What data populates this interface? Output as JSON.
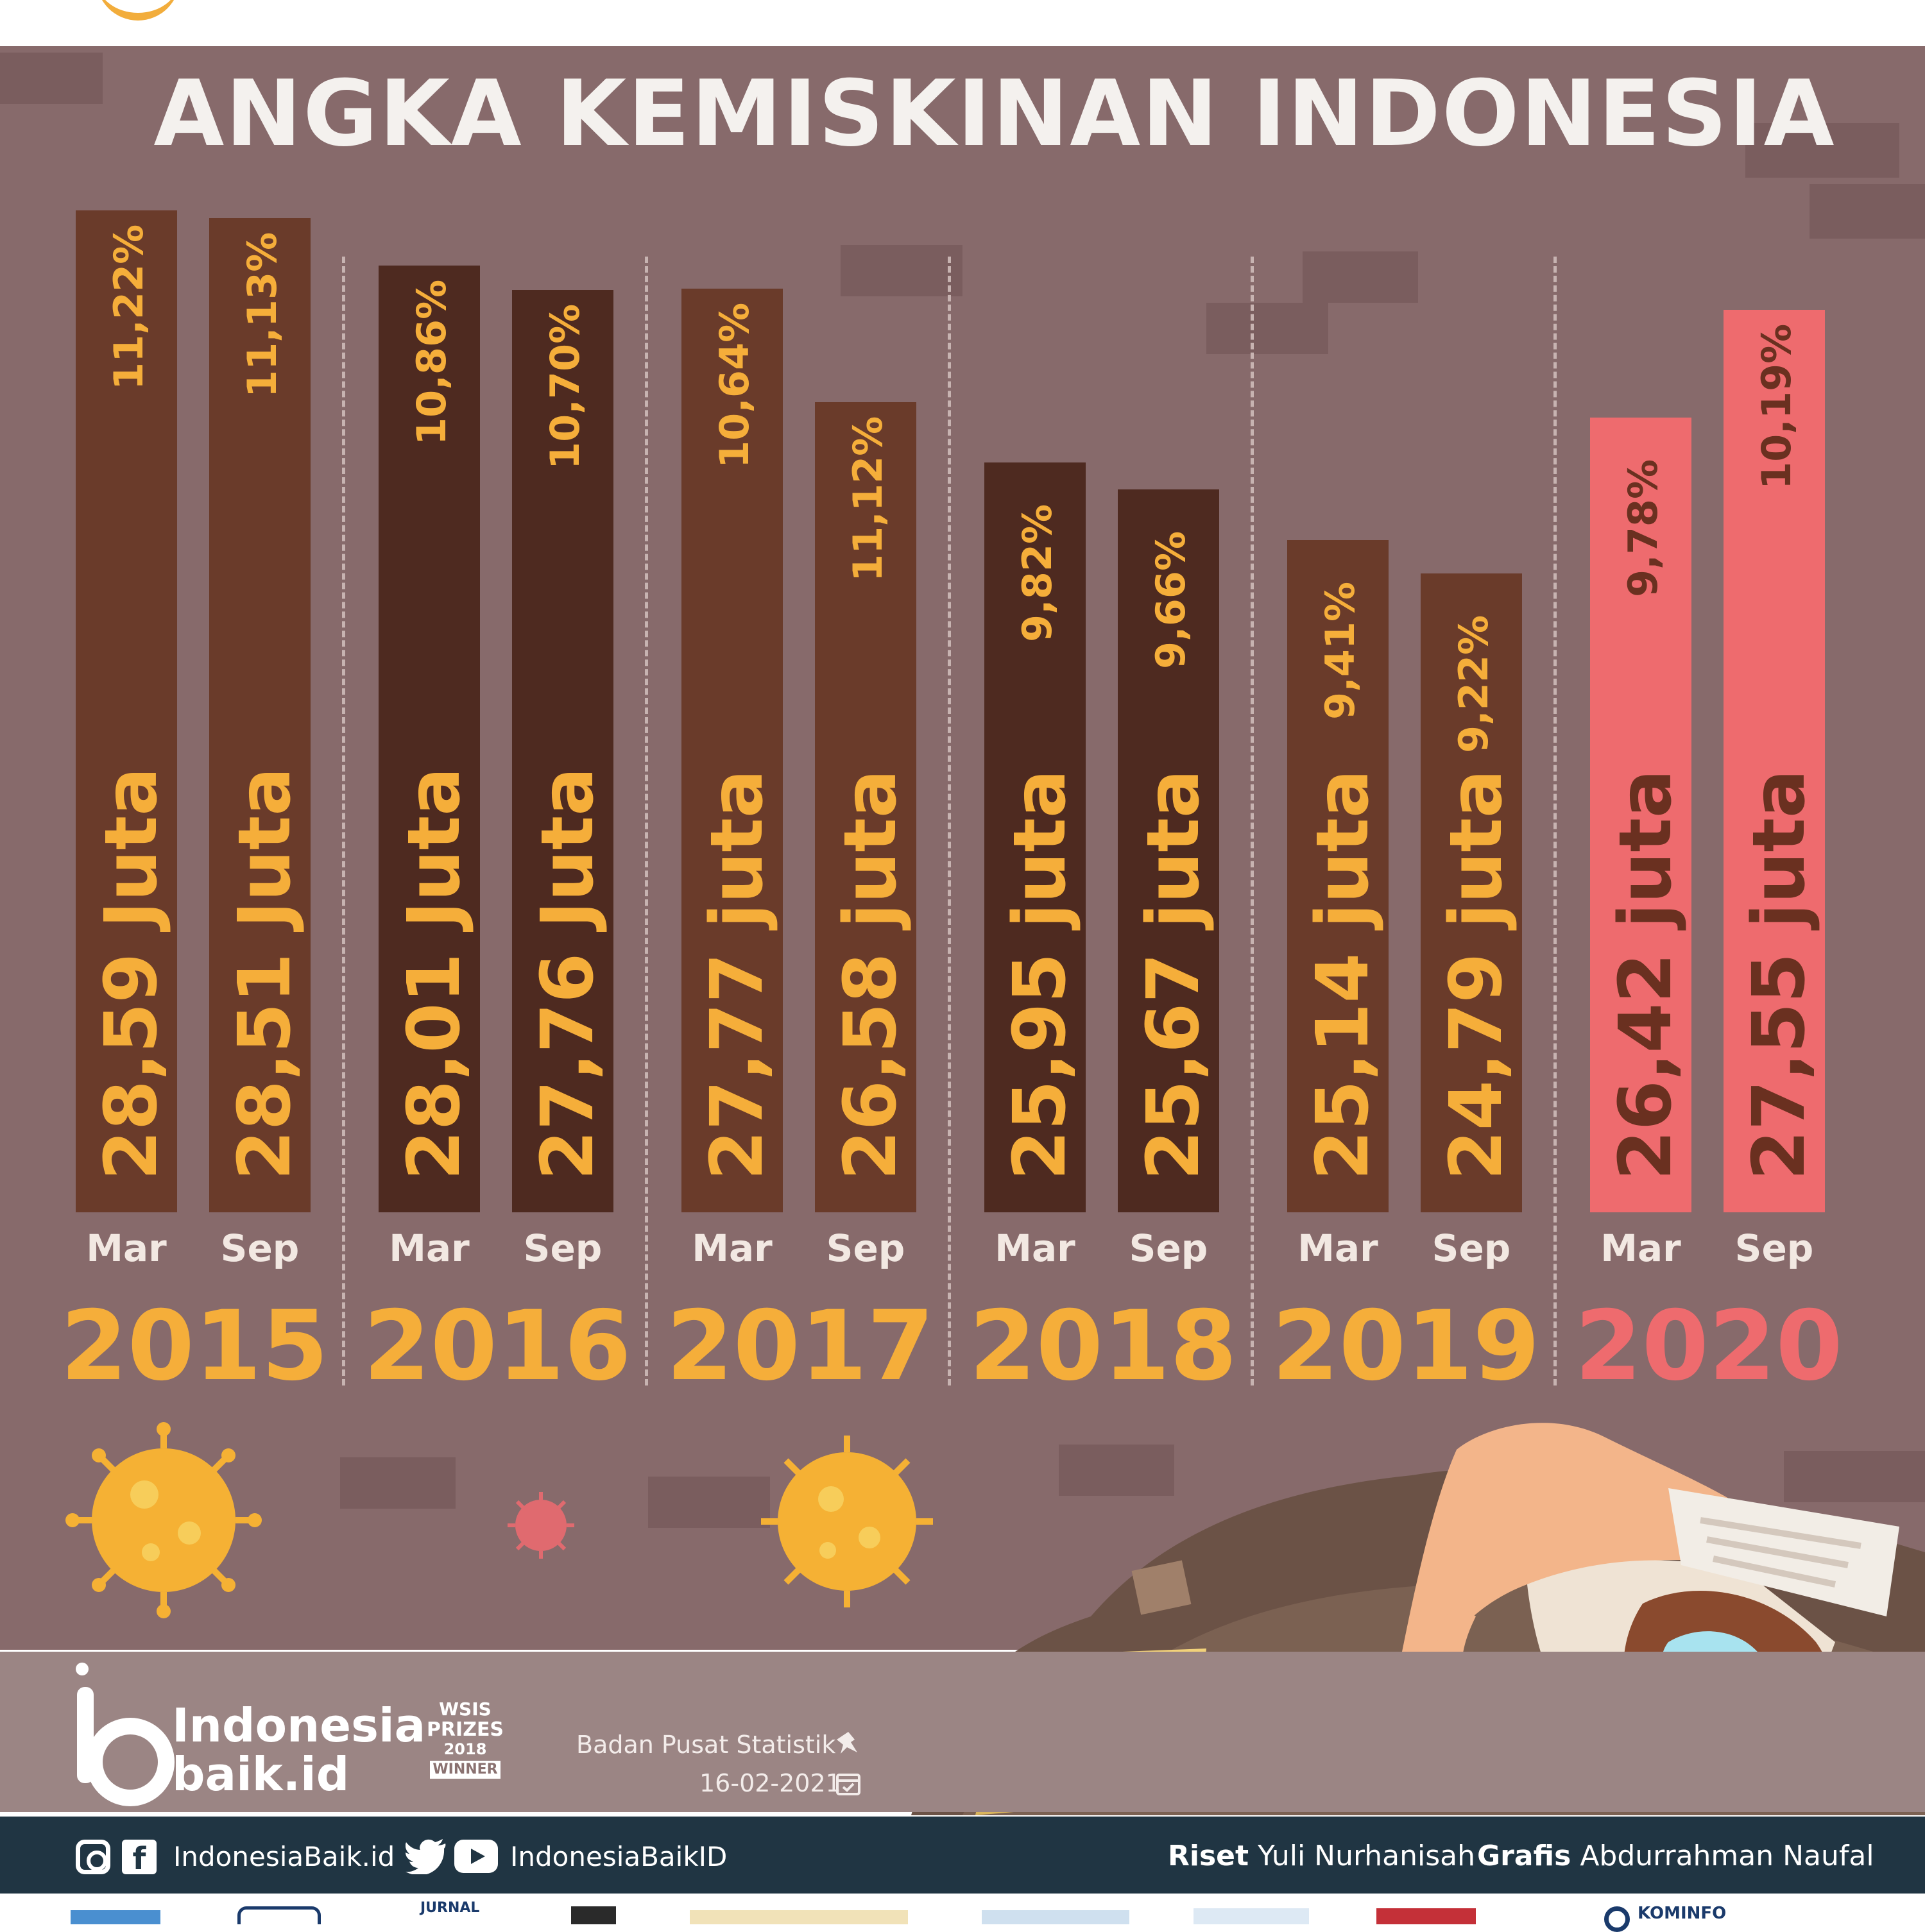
{
  "title": "ANGKA KEMISKINAN INDONESIA",
  "colors": {
    "background": "#876a6b",
    "bar_brown": "#6a3b2a",
    "bar_dark": "#4e2a20",
    "bar_2020": "#ee6b6e",
    "label_orange": "#f5ae3a",
    "label_2020": "#6a3020",
    "footer_bar": "#203543"
  },
  "chart_data": {
    "type": "bar",
    "title": "ANGKA KEMISKINAN INDONESIA",
    "xlabel": "",
    "ylabel": "",
    "years": [
      "2015",
      "2016",
      "2017",
      "2018",
      "2019",
      "2020"
    ],
    "months": [
      "Mar",
      "Sep"
    ],
    "categories": [
      "Mar 2015",
      "Sep 2015",
      "Mar 2016",
      "Sep 2016",
      "Mar 2017",
      "Sep 2017",
      "Mar 2018",
      "Sep 2018",
      "Mar 2019",
      "Sep 2019",
      "Mar 2020",
      "Sep 2020"
    ],
    "values": [
      28.59,
      28.51,
      28.01,
      27.76,
      27.77,
      26.58,
      25.95,
      25.67,
      25.14,
      24.79,
      26.42,
      27.55
    ],
    "value_labels": [
      "28,59 Juta",
      "28,51 Juta",
      "28,01 Juta",
      "27,76 Juta",
      "27,77 juta",
      "26,58 juta",
      "25,95 juta",
      "25,67 juta",
      "25,14 juta",
      "24,79 juta",
      "26,42 juta",
      "27,55 juta"
    ],
    "percentages": [
      11.22,
      11.13,
      10.86,
      10.7,
      10.64,
      11.12,
      9.82,
      9.66,
      9.41,
      9.22,
      9.78,
      10.19
    ],
    "percent_labels": [
      "11,22%",
      "11,13%",
      "10,86%",
      "10,70%",
      "10,64%",
      "11,12%",
      "9,82%",
      "9,66%",
      "9,41%",
      "9,22%",
      "9,78%",
      "10,19%"
    ],
    "highlight_year": "2020"
  },
  "source": {
    "name": "Badan Pusat Statistik",
    "date": "16-02-2021"
  },
  "brand": {
    "line1": "Indonesia",
    "line2": "baik.id",
    "award_line1": "WSIS",
    "award_line2": "PRIZES",
    "award_line3": "2018",
    "award_line4": "WINNER"
  },
  "footer": {
    "social_handle_1": "IndonesiaBaik.id",
    "social_handle_2": "IndonesiaBaikID",
    "research_label": "Riset",
    "research_name": "Yuli Nurhanisah",
    "graphic_label": "Grafis",
    "graphic_name": "Abdurrahman Naufal"
  },
  "partners": [
    "JURNAL",
    "KOMINFO"
  ],
  "icons": [
    "virus-icon",
    "instagram-icon",
    "facebook-icon",
    "twitter-icon",
    "youtube-icon",
    "pin-icon",
    "calendar-icon"
  ]
}
